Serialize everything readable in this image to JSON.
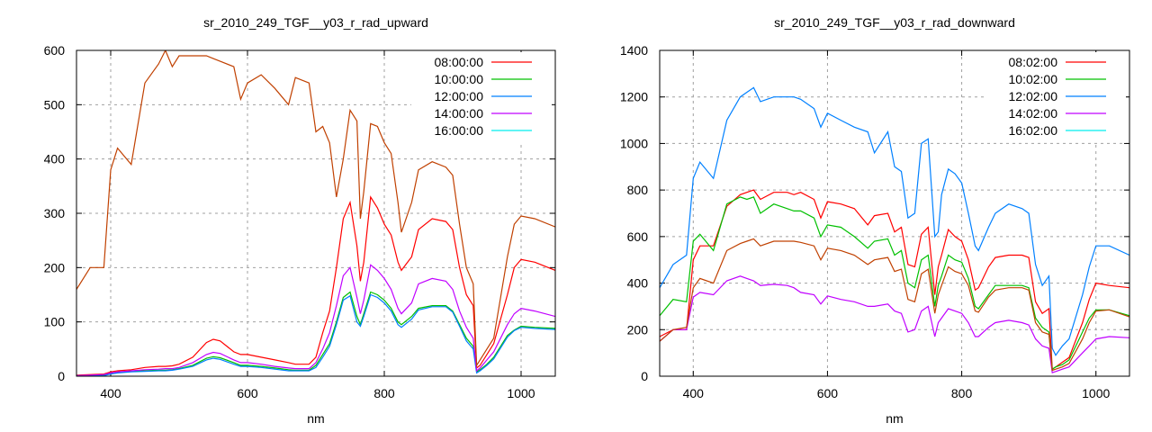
{
  "chart_data": [
    {
      "type": "line",
      "title": "sr_2010_249_TGF__y03_r_rad_upward",
      "xlabel": "nm",
      "ylabel": "",
      "xlim": [
        350,
        1050
      ],
      "ylim": [
        0,
        600
      ],
      "xticks": [
        400,
        600,
        800,
        1000
      ],
      "yticks": [
        0,
        100,
        200,
        300,
        400,
        500,
        600
      ],
      "grid": true,
      "legend_position": "top-right",
      "x": [
        350,
        370,
        390,
        400,
        410,
        430,
        450,
        470,
        480,
        490,
        500,
        520,
        540,
        550,
        560,
        580,
        590,
        600,
        620,
        640,
        660,
        670,
        690,
        700,
        710,
        720,
        730,
        740,
        750,
        760,
        765,
        770,
        780,
        790,
        800,
        810,
        820,
        825,
        840,
        850,
        870,
        890,
        900,
        910,
        920,
        930,
        935,
        940,
        950,
        960,
        980,
        990,
        1000,
        1020,
        1050
      ],
      "series": [
        {
          "name": "08:00:00",
          "color": "#ff0000",
          "values": [
            2,
            3,
            4,
            8,
            10,
            12,
            16,
            18,
            18,
            19,
            22,
            35,
            62,
            68,
            65,
            45,
            40,
            40,
            35,
            30,
            25,
            22,
            22,
            35,
            80,
            120,
            200,
            290,
            320,
            240,
            175,
            210,
            330,
            310,
            280,
            260,
            210,
            195,
            220,
            270,
            290,
            285,
            270,
            200,
            150,
            130,
            15,
            20,
            40,
            60,
            150,
            200,
            215,
            210,
            195
          ]
        },
        {
          "name": "10:00:00",
          "color": "#00c000",
          "values": [
            1,
            1,
            2,
            5,
            7,
            9,
            10,
            11,
            11,
            12,
            14,
            20,
            33,
            36,
            34,
            25,
            20,
            20,
            18,
            15,
            12,
            11,
            11,
            20,
            40,
            60,
            100,
            145,
            155,
            110,
            95,
            115,
            155,
            150,
            140,
            125,
            100,
            95,
            110,
            125,
            130,
            130,
            120,
            95,
            70,
            55,
            8,
            12,
            22,
            35,
            75,
            85,
            92,
            90,
            88
          ]
        },
        {
          "name": "12:00:00",
          "color": "#0080ff",
          "values": [
            0,
            1,
            1,
            4,
            6,
            8,
            9,
            10,
            10,
            11,
            13,
            18,
            30,
            33,
            31,
            22,
            18,
            18,
            16,
            13,
            10,
            10,
            10,
            16,
            35,
            55,
            95,
            140,
            148,
            100,
            92,
            110,
            150,
            145,
            135,
            120,
            95,
            90,
            105,
            122,
            128,
            128,
            118,
            92,
            65,
            50,
            6,
            10,
            20,
            32,
            72,
            84,
            90,
            88,
            86
          ]
        },
        {
          "name": "14:00:00",
          "color": "#c000ff",
          "values": [
            1,
            2,
            3,
            6,
            8,
            10,
            12,
            13,
            14,
            14,
            16,
            25,
            40,
            44,
            42,
            30,
            25,
            25,
            22,
            18,
            15,
            14,
            14,
            25,
            50,
            80,
            130,
            185,
            200,
            145,
            115,
            140,
            205,
            195,
            180,
            160,
            125,
            115,
            135,
            170,
            180,
            175,
            160,
            120,
            90,
            70,
            10,
            15,
            30,
            45,
            95,
            115,
            125,
            120,
            110
          ]
        },
        {
          "name": "16:00:00",
          "color": "#00eeee",
          "values": null
        },
        {
          "name": "",
          "color": "#c04000",
          "values": [
            160,
            200,
            200,
            380,
            420,
            390,
            540,
            575,
            600,
            570,
            590,
            590,
            590,
            585,
            580,
            570,
            510,
            540,
            555,
            530,
            500,
            550,
            540,
            450,
            460,
            430,
            330,
            400,
            490,
            470,
            290,
            340,
            465,
            460,
            430,
            410,
            320,
            265,
            320,
            380,
            395,
            385,
            370,
            280,
            200,
            170,
            20,
            30,
            50,
            70,
            220,
            280,
            295,
            290,
            275
          ]
        }
      ]
    },
    {
      "type": "line",
      "title": "sr_2010_249_TGF__y03_r_rad_downward",
      "xlabel": "nm",
      "ylabel": "",
      "xlim": [
        350,
        1050
      ],
      "ylim": [
        0,
        1400
      ],
      "xticks": [
        400,
        600,
        800,
        1000
      ],
      "yticks": [
        0,
        200,
        400,
        600,
        800,
        1000,
        1200,
        1400
      ],
      "grid": true,
      "legend_position": "top-right",
      "x": [
        350,
        370,
        390,
        400,
        410,
        430,
        450,
        470,
        480,
        490,
        500,
        520,
        540,
        550,
        560,
        580,
        590,
        600,
        620,
        640,
        660,
        670,
        690,
        700,
        710,
        720,
        730,
        740,
        750,
        760,
        765,
        770,
        780,
        790,
        800,
        810,
        820,
        825,
        840,
        850,
        870,
        890,
        900,
        910,
        920,
        930,
        935,
        940,
        950,
        960,
        980,
        990,
        1000,
        1020,
        1050
      ],
      "series": [
        {
          "name": "08:02:00",
          "color": "#ff0000",
          "values": [
            170,
            200,
            200,
            500,
            560,
            560,
            730,
            780,
            790,
            800,
            760,
            790,
            790,
            780,
            790,
            760,
            680,
            750,
            740,
            720,
            650,
            690,
            700,
            620,
            640,
            480,
            470,
            610,
            640,
            350,
            470,
            520,
            630,
            600,
            580,
            500,
            370,
            380,
            470,
            510,
            520,
            520,
            510,
            320,
            270,
            290,
            30,
            40,
            60,
            80,
            230,
            330,
            400,
            390,
            380
          ]
        },
        {
          "name": "10:02:00",
          "color": "#00c000",
          "values": [
            260,
            330,
            320,
            580,
            610,
            540,
            740,
            770,
            760,
            770,
            700,
            740,
            720,
            710,
            710,
            680,
            600,
            650,
            640,
            600,
            550,
            580,
            590,
            520,
            540,
            400,
            380,
            500,
            520,
            300,
            390,
            430,
            520,
            500,
            490,
            420,
            300,
            290,
            350,
            390,
            390,
            390,
            380,
            250,
            210,
            190,
            30,
            40,
            50,
            70,
            190,
            250,
            285,
            285,
            260
          ]
        },
        {
          "name": "12:02:00",
          "color": "#0080ff",
          "values": [
            380,
            480,
            520,
            850,
            920,
            850,
            1100,
            1200,
            1220,
            1240,
            1180,
            1200,
            1200,
            1200,
            1190,
            1150,
            1070,
            1130,
            1100,
            1070,
            1050,
            960,
            1050,
            900,
            880,
            680,
            700,
            1000,
            1020,
            600,
            620,
            780,
            890,
            870,
            830,
            700,
            560,
            540,
            640,
            700,
            740,
            720,
            700,
            480,
            390,
            430,
            120,
            90,
            130,
            160,
            350,
            470,
            560,
            560,
            520
          ]
        },
        {
          "name": "14:02:00",
          "color": "#c000ff",
          "values": [
            150,
            200,
            200,
            340,
            360,
            350,
            410,
            430,
            420,
            410,
            390,
            395,
            390,
            380,
            360,
            350,
            310,
            345,
            330,
            320,
            300,
            300,
            310,
            280,
            270,
            190,
            200,
            280,
            300,
            170,
            230,
            250,
            290,
            280,
            270,
            230,
            170,
            170,
            210,
            230,
            240,
            230,
            220,
            160,
            130,
            120,
            15,
            20,
            30,
            40,
            100,
            130,
            160,
            170,
            165
          ]
        },
        {
          "name": "16:02:00",
          "color": "#00eeee",
          "values": null
        },
        {
          "name": "",
          "color": "#c04000",
          "values": [
            150,
            200,
            210,
            380,
            420,
            400,
            540,
            570,
            580,
            590,
            560,
            580,
            580,
            580,
            575,
            560,
            500,
            550,
            540,
            520,
            480,
            500,
            510,
            450,
            460,
            330,
            320,
            440,
            460,
            270,
            350,
            390,
            470,
            450,
            440,
            390,
            280,
            275,
            340,
            370,
            380,
            380,
            370,
            230,
            190,
            180,
            25,
            30,
            40,
            55,
            160,
            230,
            280,
            285,
            255
          ]
        }
      ]
    }
  ]
}
